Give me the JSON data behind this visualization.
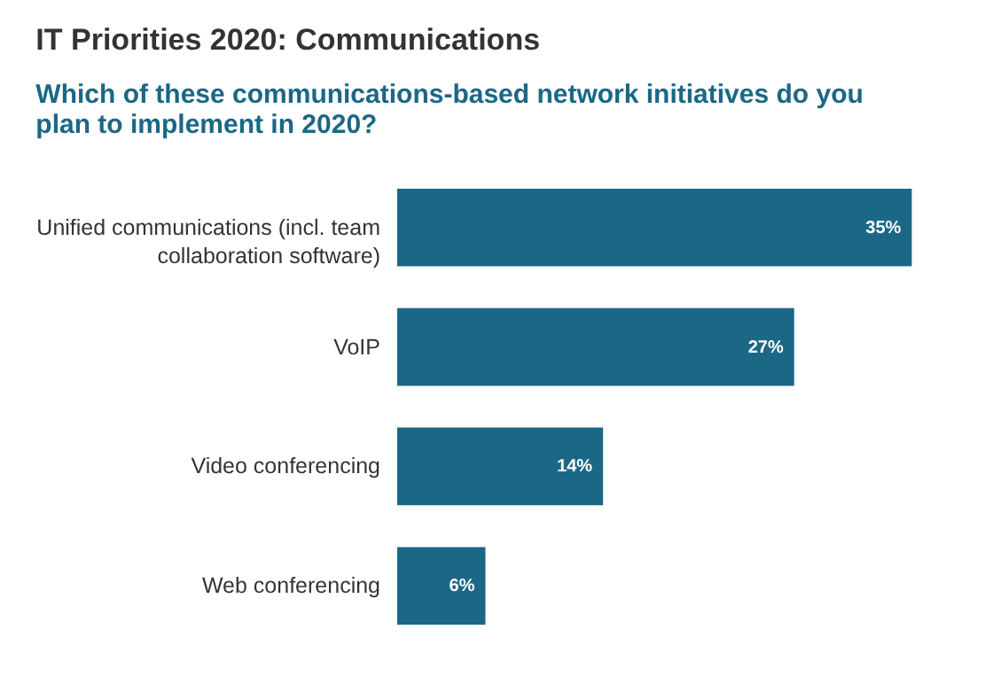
{
  "chart_data": {
    "type": "bar",
    "orientation": "horizontal",
    "title": "IT Priorities 2020: Communications",
    "subtitle": "Which of these communications-based network initiatives do you plan to implement in 2020?",
    "categories": [
      "Unified communications (incl. team collaboration software)",
      "VoIP",
      "Video conferencing",
      "Web conferencing"
    ],
    "values": [
      35,
      27,
      14,
      6
    ],
    "value_labels": [
      "35%",
      "27%",
      "14%",
      "6%"
    ],
    "color": "#1b6786"
  }
}
